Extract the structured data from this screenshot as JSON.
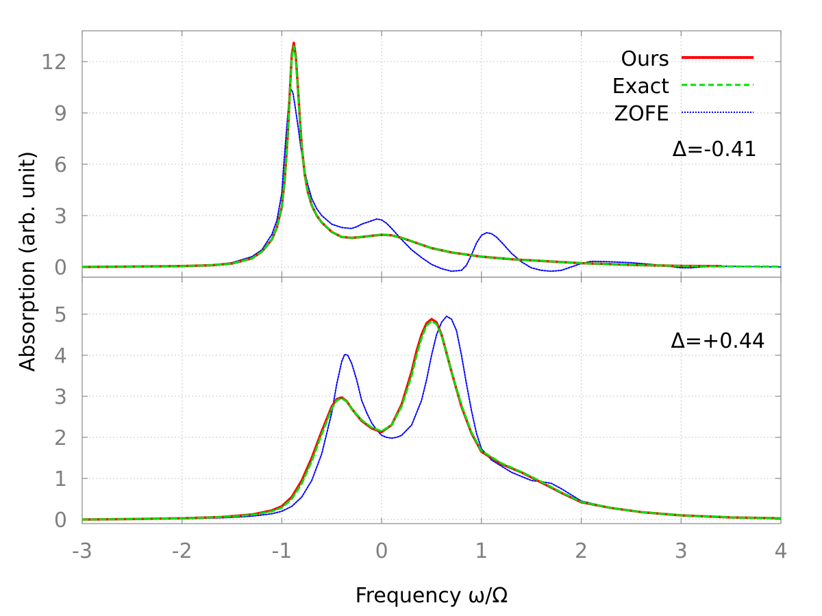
{
  "chart_data": {
    "type": "line",
    "xlabel": "Frequency ω/Ω",
    "ylabel": "Absorption (arb. unit)",
    "xlim": [
      -3,
      4
    ],
    "xticks": [
      -3,
      -2,
      -1,
      0,
      1,
      2,
      3,
      4
    ],
    "grid": true,
    "legend": {
      "placement": "top-right",
      "entries": [
        {
          "name": "Ours",
          "color": "#ff0000",
          "style": "solid"
        },
        {
          "name": "Exact",
          "color": "#00e000",
          "style": "dashed"
        },
        {
          "name": "ZOFE",
          "color": "#0000ff",
          "style": "dotted"
        }
      ]
    },
    "panels": [
      {
        "annotation": "Δ=-0.41",
        "ylim": [
          -0.6,
          13.8
        ],
        "yticks": [
          0,
          3,
          6,
          9,
          12
        ],
        "series": [
          {
            "name": "Ours",
            "x": [
              -3,
              -2.5,
              -2,
              -1.7,
              -1.5,
              -1.3,
              -1.2,
              -1.1,
              -1.05,
              -1.0,
              -0.97,
              -0.94,
              -0.92,
              -0.9,
              -0.88,
              -0.86,
              -0.84,
              -0.82,
              -0.8,
              -0.77,
              -0.74,
              -0.7,
              -0.65,
              -0.6,
              -0.5,
              -0.4,
              -0.3,
              -0.2,
              -0.1,
              0,
              0.1,
              0.2,
              0.3,
              0.4,
              0.5,
              0.7,
              1.0,
              1.3,
              1.6,
              2.0,
              2.5,
              3.0,
              3.4
            ],
            "y": [
              0,
              0.02,
              0.05,
              0.1,
              0.2,
              0.5,
              0.9,
              1.6,
              2.3,
              3.5,
              5.2,
              7.8,
              10.2,
              12.4,
              13.1,
              12.3,
              10.6,
              8.7,
              7.0,
              5.4,
              4.4,
              3.6,
              3.0,
              2.6,
              2.05,
              1.75,
              1.7,
              1.75,
              1.82,
              1.88,
              1.85,
              1.7,
              1.5,
              1.3,
              1.1,
              0.85,
              0.6,
              0.45,
              0.35,
              0.22,
              0.12,
              0.06,
              0.05
            ]
          },
          {
            "name": "Exact",
            "x": [
              -3,
              -2.5,
              -2,
              -1.7,
              -1.5,
              -1.3,
              -1.2,
              -1.1,
              -1.05,
              -1.0,
              -0.97,
              -0.94,
              -0.92,
              -0.9,
              -0.88,
              -0.86,
              -0.84,
              -0.82,
              -0.8,
              -0.77,
              -0.74,
              -0.7,
              -0.65,
              -0.6,
              -0.5,
              -0.4,
              -0.3,
              -0.2,
              -0.1,
              0,
              0.1,
              0.2,
              0.3,
              0.4,
              0.5,
              0.7,
              1.0,
              1.3,
              1.6,
              2.0,
              2.5,
              3.0,
              3.5,
              4.0
            ],
            "y": [
              0,
              0.02,
              0.05,
              0.1,
              0.2,
              0.5,
              0.9,
              1.6,
              2.3,
              3.5,
              5.2,
              7.8,
              10.1,
              12.3,
              12.9,
              12.2,
              10.5,
              8.6,
              7.0,
              5.4,
              4.4,
              3.6,
              3.0,
              2.6,
              2.05,
              1.75,
              1.7,
              1.75,
              1.82,
              1.88,
              1.85,
              1.7,
              1.5,
              1.3,
              1.1,
              0.85,
              0.6,
              0.45,
              0.35,
              0.22,
              0.12,
              0.06,
              0.03,
              0.02
            ]
          },
          {
            "name": "ZOFE",
            "x": [
              -3,
              -2.5,
              -2,
              -1.7,
              -1.5,
              -1.3,
              -1.2,
              -1.1,
              -1.05,
              -1.0,
              -0.98,
              -0.95,
              -0.93,
              -0.91,
              -0.89,
              -0.87,
              -0.85,
              -0.83,
              -0.81,
              -0.79,
              -0.77,
              -0.74,
              -0.7,
              -0.65,
              -0.6,
              -0.5,
              -0.4,
              -0.3,
              -0.25,
              -0.2,
              -0.1,
              -0.05,
              0,
              0.05,
              0.1,
              0.2,
              0.3,
              0.4,
              0.5,
              0.6,
              0.7,
              0.8,
              0.85,
              0.9,
              0.95,
              1.0,
              1.05,
              1.1,
              1.15,
              1.2,
              1.3,
              1.4,
              1.5,
              1.6,
              1.7,
              1.8,
              1.9,
              2.0,
              2.1,
              2.3,
              2.5,
              2.8,
              3.0,
              3.1,
              3.2,
              3.4,
              3.6,
              4.0
            ],
            "y": [
              0,
              0.02,
              0.05,
              0.1,
              0.25,
              0.6,
              1.0,
              1.9,
              2.7,
              4.3,
              6.0,
              8.2,
              9.6,
              10.4,
              10.2,
              9.5,
              8.7,
              7.9,
              7.0,
              6.3,
              5.6,
              4.8,
              4.0,
              3.4,
              3.0,
              2.5,
              2.3,
              2.25,
              2.35,
              2.5,
              2.7,
              2.8,
              2.75,
              2.55,
              2.25,
              1.6,
              1.0,
              0.55,
              0.15,
              -0.1,
              -0.25,
              -0.2,
              0.1,
              0.7,
              1.4,
              1.85,
              2.0,
              1.95,
              1.75,
              1.45,
              0.8,
              0.3,
              -0.05,
              -0.2,
              -0.25,
              -0.2,
              0.0,
              0.2,
              0.33,
              0.3,
              0.25,
              0.1,
              -0.05,
              -0.05,
              0.0,
              0.05,
              0.02,
              0.0
            ]
          }
        ]
      },
      {
        "annotation": "Δ=+0.44",
        "ylim": [
          -0.1,
          5.9
        ],
        "yticks": [
          0,
          1,
          2,
          3,
          4,
          5
        ],
        "series": [
          {
            "name": "Ours",
            "x": [
              -3,
              -2.5,
              -2,
              -1.6,
              -1.3,
              -1.1,
              -1.0,
              -0.9,
              -0.8,
              -0.7,
              -0.6,
              -0.5,
              -0.45,
              -0.4,
              -0.35,
              -0.3,
              -0.2,
              -0.1,
              0,
              0.1,
              0.2,
              0.3,
              0.35,
              0.4,
              0.45,
              0.5,
              0.55,
              0.6,
              0.65,
              0.7,
              0.8,
              0.9,
              1.0,
              1.2,
              1.4,
              1.6,
              1.8,
              2.0,
              2.3,
              2.6,
              3.0,
              3.5,
              4.0
            ],
            "y": [
              0,
              0.01,
              0.03,
              0.06,
              0.12,
              0.22,
              0.32,
              0.55,
              0.95,
              1.5,
              2.15,
              2.75,
              2.93,
              2.97,
              2.88,
              2.7,
              2.4,
              2.22,
              2.13,
              2.3,
              2.8,
              3.6,
              4.1,
              4.5,
              4.78,
              4.88,
              4.8,
              4.5,
              4.05,
              3.6,
              2.75,
              2.1,
              1.65,
              1.35,
              1.15,
              0.9,
              0.65,
              0.42,
              0.28,
              0.18,
              0.1,
              0.05,
              0.03
            ]
          },
          {
            "name": "Exact",
            "x": [
              -3,
              -2.5,
              -2,
              -1.6,
              -1.3,
              -1.1,
              -1.0,
              -0.9,
              -0.8,
              -0.7,
              -0.6,
              -0.5,
              -0.45,
              -0.4,
              -0.35,
              -0.3,
              -0.2,
              -0.1,
              0,
              0.1,
              0.2,
              0.3,
              0.35,
              0.4,
              0.45,
              0.5,
              0.55,
              0.6,
              0.65,
              0.7,
              0.8,
              0.9,
              1.0,
              1.2,
              1.4,
              1.6,
              1.8,
              2.0,
              2.3,
              2.6,
              3.0,
              3.5,
              4.0
            ],
            "y": [
              0,
              0.01,
              0.03,
              0.06,
              0.11,
              0.2,
              0.29,
              0.5,
              0.88,
              1.42,
              2.08,
              2.7,
              2.9,
              2.95,
              2.87,
              2.7,
              2.42,
              2.24,
              2.15,
              2.3,
              2.75,
              3.5,
              4.0,
              4.42,
              4.72,
              4.83,
              4.76,
              4.48,
              4.05,
              3.6,
              2.78,
              2.12,
              1.67,
              1.37,
              1.16,
              0.92,
              0.66,
              0.43,
              0.28,
              0.18,
              0.1,
              0.05,
              0.03
            ]
          },
          {
            "name": "ZOFE",
            "x": [
              -3,
              -2.5,
              -2,
              -1.6,
              -1.3,
              -1.1,
              -1.0,
              -0.9,
              -0.8,
              -0.7,
              -0.6,
              -0.5,
              -0.45,
              -0.4,
              -0.37,
              -0.34,
              -0.3,
              -0.25,
              -0.2,
              -0.15,
              -0.1,
              -0.05,
              0,
              0.05,
              0.1,
              0.15,
              0.2,
              0.3,
              0.4,
              0.45,
              0.5,
              0.55,
              0.6,
              0.65,
              0.7,
              0.75,
              0.8,
              0.85,
              0.9,
              0.95,
              1.0,
              1.1,
              1.2,
              1.3,
              1.4,
              1.5,
              1.6,
              1.7,
              1.8,
              2.0,
              2.3,
              2.6,
              3.0,
              3.5,
              4.0
            ],
            "y": [
              0,
              0.01,
              0.02,
              0.04,
              0.08,
              0.14,
              0.2,
              0.32,
              0.55,
              0.95,
              1.6,
              2.6,
              3.3,
              3.85,
              4.02,
              4.0,
              3.8,
              3.4,
              2.9,
              2.6,
              2.35,
              2.18,
              2.05,
              2.0,
              1.98,
              2.0,
              2.05,
              2.3,
              2.9,
              3.4,
              4.0,
              4.5,
              4.8,
              4.95,
              4.88,
              4.6,
              4.0,
              3.3,
              2.65,
              2.1,
              1.72,
              1.45,
              1.3,
              1.15,
              1.05,
              0.95,
              0.92,
              0.88,
              0.75,
              0.45,
              0.28,
              0.18,
              0.1,
              0.05,
              0.03
            ]
          }
        ]
      }
    ]
  }
}
